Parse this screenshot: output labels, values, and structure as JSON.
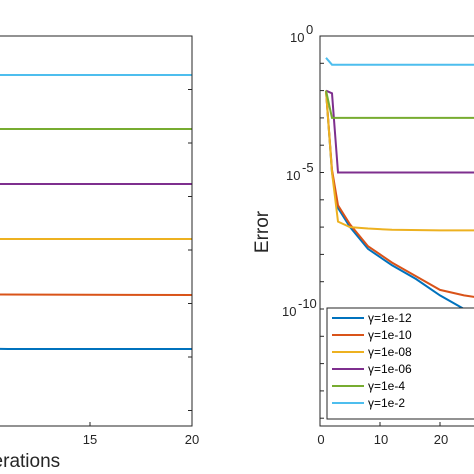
{
  "chart_data": [
    {
      "type": "line",
      "xlabel": "Iterations",
      "ylabel": "",
      "xlim": [
        0,
        20
      ],
      "xticks": [
        "15",
        "20"
      ],
      "grid": false,
      "series": [
        {
          "name": "γ=1e-2",
          "color": "#4DBEEE",
          "x": [
            0,
            20
          ],
          "y": [
            75,
            75
          ]
        },
        {
          "name": "γ=1e-4",
          "color": "#77AC30",
          "x": [
            0,
            20
          ],
          "y": [
            129,
            129
          ]
        },
        {
          "name": "γ=1e-06",
          "color": "#7E2F8E",
          "x": [
            0,
            20
          ],
          "y": [
            184,
            184
          ]
        },
        {
          "name": "γ=1e-08",
          "color": "#EDB120",
          "x": [
            0,
            20
          ],
          "y": [
            239,
            239
          ]
        },
        {
          "name": "γ=1e-10",
          "color": "#D95319",
          "x": [
            0,
            1,
            3,
            20
          ],
          "y": [
            291,
            290,
            294,
            295
          ]
        },
        {
          "name": "γ=1e-12",
          "color": "#0072BD",
          "x": [
            0,
            1,
            2,
            3,
            5,
            8,
            11,
            20
          ],
          "y": [
            318,
            322,
            335,
            343,
            346,
            348,
            349,
            349
          ]
        }
      ]
    },
    {
      "type": "line",
      "xlabel": "",
      "ylabel": "Error",
      "yscale": "log",
      "ylim": [
        1e-14,
        1
      ],
      "xlim": [
        0,
        30
      ],
      "xticks": [
        "0",
        "10",
        "20"
      ],
      "yticks": [
        "10^0",
        "10^-5",
        "10^-10"
      ],
      "legend_position": "bottom-left",
      "grid": false,
      "series": [
        {
          "name": "γ=1e-12",
          "color": "#0072BD",
          "x": [
            1,
            2,
            3,
            5,
            8,
            12,
            16,
            20,
            24,
            27
          ],
          "y": [
            -2.0,
            -5.0,
            -6.3,
            -7.0,
            -7.8,
            -8.4,
            -8.9,
            -9.5,
            -10.0,
            -10.4
          ]
        },
        {
          "name": "γ=1e-10",
          "color": "#D95319",
          "x": [
            1,
            2,
            3,
            5,
            8,
            12,
            16,
            20,
            24,
            27
          ],
          "y": [
            -2.0,
            -4.9,
            -6.2,
            -6.9,
            -7.7,
            -8.3,
            -8.8,
            -9.3,
            -9.5,
            -9.6
          ]
        },
        {
          "name": "γ=1e-08",
          "color": "#EDB120",
          "x": [
            1,
            2,
            3,
            5,
            8,
            12,
            20,
            27
          ],
          "y": [
            -2.0,
            -5.0,
            -6.8,
            -7.0,
            -7.05,
            -7.1,
            -7.12,
            -7.12
          ]
        },
        {
          "name": "γ=1e-06",
          "color": "#7E2F8E",
          "x": [
            1,
            2,
            3,
            27
          ],
          "y": [
            -2.0,
            -2.1,
            -5.0,
            -5.0
          ]
        },
        {
          "name": "γ=1e-4",
          "color": "#77AC30",
          "x": [
            1,
            2,
            27
          ],
          "y": [
            -2.0,
            -3.0,
            -3.0
          ]
        },
        {
          "name": "γ=1e-2",
          "color": "#4DBEEE",
          "x": [
            1,
            2,
            27
          ],
          "y": [
            -0.8,
            -1.05,
            -1.05
          ]
        }
      ]
    }
  ]
}
